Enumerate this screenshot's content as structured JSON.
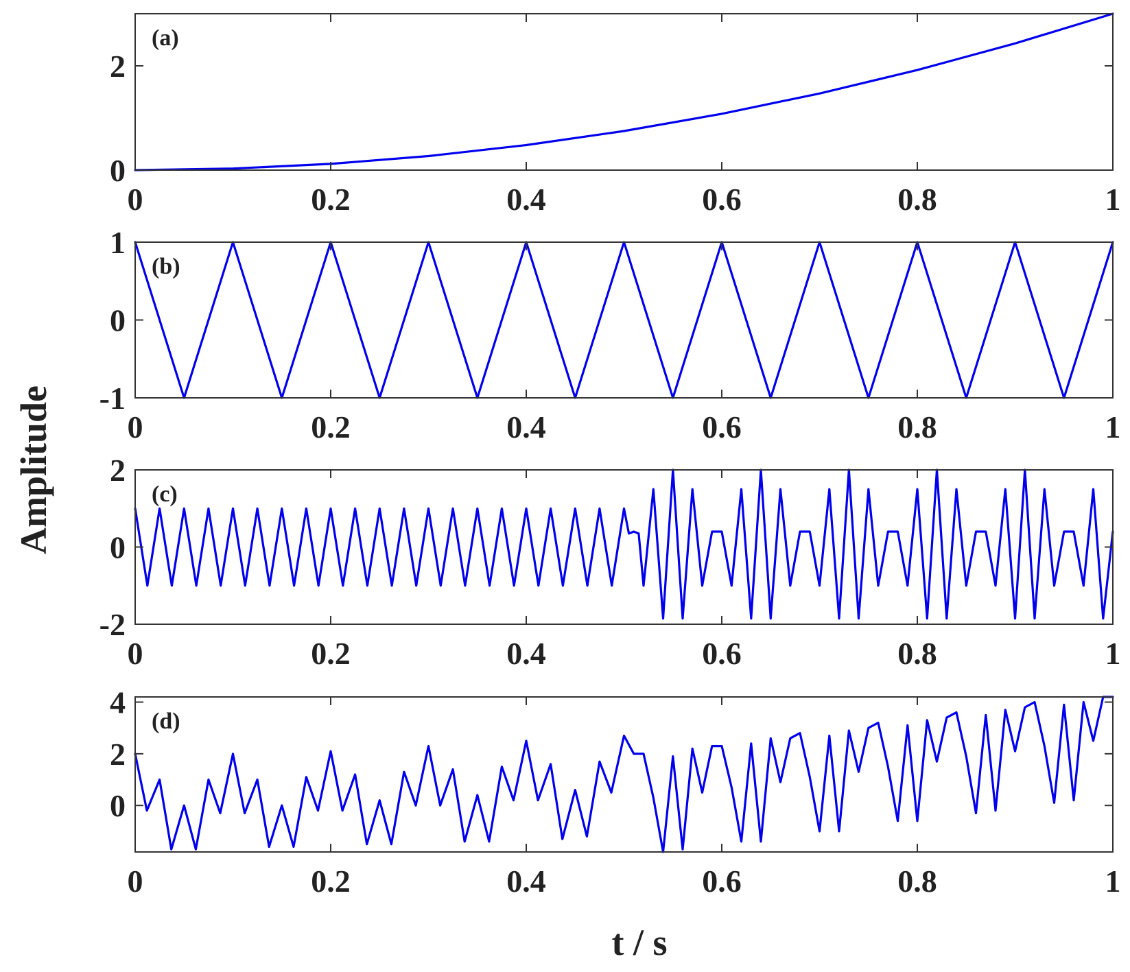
{
  "figure": {
    "ylabel": "Amplitude",
    "xlabel": "t / s",
    "line_color": "#0000ee"
  },
  "chart_data": [
    {
      "type": "line",
      "panel_label": "(a)",
      "xlim": [
        0,
        1
      ],
      "ylim": [
        0,
        3
      ],
      "xticks": [
        0,
        0.2,
        0.4,
        0.6,
        0.8,
        1
      ],
      "xtick_labels": [
        "0",
        "0.2",
        "0.4",
        "0.6",
        "0.8",
        "1"
      ],
      "yticks": [
        0,
        2
      ],
      "ytick_labels": [
        "0",
        "2"
      ],
      "grid": false,
      "series": [
        {
          "x": [
            0,
            0.1,
            0.2,
            0.3,
            0.4,
            0.5,
            0.6,
            0.7,
            0.8,
            0.9,
            1.0
          ],
          "values": [
            0,
            0.03,
            0.12,
            0.27,
            0.48,
            0.75,
            1.08,
            1.47,
            1.92,
            2.43,
            3.0
          ]
        }
      ]
    },
    {
      "type": "line",
      "panel_label": "(b)",
      "xlim": [
        0,
        1
      ],
      "ylim": [
        -1,
        1
      ],
      "xticks": [
        0,
        0.2,
        0.4,
        0.6,
        0.8,
        1
      ],
      "xtick_labels": [
        "0",
        "0.2",
        "0.4",
        "0.6",
        "0.8",
        "1"
      ],
      "yticks": [
        -1,
        0,
        1
      ],
      "ytick_labels": [
        "-1",
        "0",
        "1"
      ],
      "grid": false,
      "series": [
        {
          "x": [
            0,
            0.05,
            0.1,
            0.15,
            0.2,
            0.25,
            0.3,
            0.35,
            0.4,
            0.45,
            0.5,
            0.55,
            0.6,
            0.65,
            0.7,
            0.75,
            0.8,
            0.85,
            0.9,
            0.95,
            1.0
          ],
          "values": [
            1,
            -1,
            1,
            -1,
            1,
            -1,
            1,
            -1,
            1,
            -1,
            1,
            -1,
            1,
            -1,
            1,
            -1,
            1,
            -1,
            1,
            -1,
            1
          ]
        }
      ]
    },
    {
      "type": "line",
      "panel_label": "(c)",
      "xlim": [
        0,
        1
      ],
      "ylim": [
        -2,
        2
      ],
      "xticks": [
        0,
        0.2,
        0.4,
        0.6,
        0.8,
        1
      ],
      "xtick_labels": [
        "0",
        "0.2",
        "0.4",
        "0.6",
        "0.8",
        "1"
      ],
      "yticks": [
        -2,
        0,
        2
      ],
      "ytick_labels": [
        "-2",
        "0",
        "2"
      ],
      "grid": false,
      "series": [
        {
          "x": [
            0,
            0.0125,
            0.025,
            0.0375,
            0.05,
            0.0625,
            0.075,
            0.0875,
            0.1,
            0.1125,
            0.125,
            0.1375,
            0.15,
            0.1625,
            0.175,
            0.1875,
            0.2,
            0.2125,
            0.225,
            0.2375,
            0.25,
            0.2625,
            0.275,
            0.2875,
            0.3,
            0.3125,
            0.325,
            0.3375,
            0.35,
            0.3625,
            0.375,
            0.3875,
            0.4,
            0.4125,
            0.425,
            0.4375,
            0.45,
            0.4625,
            0.475,
            0.4875,
            0.5,
            0.505,
            0.51,
            0.515,
            0.52,
            0.53,
            0.54,
            0.55,
            0.56,
            0.57,
            0.58,
            0.59,
            0.6,
            0.61,
            0.62,
            0.63,
            0.64,
            0.65,
            0.66,
            0.67,
            0.68,
            0.69,
            0.7,
            0.71,
            0.72,
            0.73,
            0.74,
            0.75,
            0.76,
            0.77,
            0.78,
            0.79,
            0.8,
            0.81,
            0.82,
            0.83,
            0.84,
            0.85,
            0.86,
            0.87,
            0.88,
            0.89,
            0.9,
            0.91,
            0.92,
            0.93,
            0.94,
            0.95,
            0.96,
            0.97,
            0.98,
            0.99,
            1.0
          ],
          "values": [
            1,
            -1,
            1,
            -1,
            1,
            -1,
            1,
            -1,
            1,
            -1,
            1,
            -1,
            1,
            -1,
            1,
            -1,
            1,
            -1,
            1,
            -1,
            1,
            -1,
            1,
            -1,
            1,
            -1,
            1,
            -1,
            1,
            -1,
            1,
            -1,
            1,
            -1,
            1,
            -1,
            1,
            -1,
            1,
            -1,
            1,
            0.35,
            0.4,
            0.35,
            -1.0,
            1.5,
            -1.85,
            2.0,
            -1.85,
            1.5,
            -1.0,
            0.4,
            0.4,
            -1.0,
            1.5,
            -1.85,
            2.0,
            -1.85,
            1.5,
            -1.0,
            0.4,
            0.4,
            -1.0,
            1.5,
            -1.85,
            2.0,
            -1.85,
            1.5,
            -1.0,
            0.4,
            0.4,
            -1.0,
            1.5,
            -1.85,
            2.0,
            -1.85,
            1.5,
            -1.0,
            0.4,
            0.4,
            -1.0,
            1.5,
            -1.85,
            2.0,
            -1.85,
            1.5,
            -1.0,
            0.4,
            0.4,
            -1.0,
            1.5,
            -1.85,
            0.4
          ]
        }
      ]
    },
    {
      "type": "line",
      "panel_label": "(d)",
      "xlim": [
        0,
        1
      ],
      "ylim": [
        -1.8,
        4.2
      ],
      "xticks": [
        0,
        0.2,
        0.4,
        0.6,
        0.8,
        1
      ],
      "xtick_labels": [
        "0",
        "0.2",
        "0.4",
        "0.6",
        "0.8",
        "1"
      ],
      "yticks": [
        0,
        2,
        4
      ],
      "ytick_labels": [
        "0",
        "2",
        "4"
      ],
      "grid": false,
      "series": [
        {
          "x": [
            0,
            0.012,
            0.025,
            0.037,
            0.05,
            0.062,
            0.075,
            0.087,
            0.1,
            0.112,
            0.125,
            0.137,
            0.15,
            0.162,
            0.175,
            0.187,
            0.2,
            0.212,
            0.225,
            0.237,
            0.25,
            0.262,
            0.275,
            0.287,
            0.3,
            0.312,
            0.325,
            0.337,
            0.35,
            0.362,
            0.375,
            0.387,
            0.4,
            0.412,
            0.425,
            0.437,
            0.45,
            0.462,
            0.475,
            0.487,
            0.5,
            0.51,
            0.52,
            0.53,
            0.54,
            0.55,
            0.56,
            0.57,
            0.58,
            0.59,
            0.6,
            0.61,
            0.62,
            0.63,
            0.64,
            0.65,
            0.66,
            0.67,
            0.68,
            0.69,
            0.7,
            0.71,
            0.72,
            0.73,
            0.74,
            0.75,
            0.76,
            0.77,
            0.78,
            0.79,
            0.8,
            0.81,
            0.82,
            0.83,
            0.84,
            0.85,
            0.86,
            0.87,
            0.88,
            0.89,
            0.9,
            0.91,
            0.92,
            0.93,
            0.94,
            0.95,
            0.96,
            0.97,
            0.98,
            0.99,
            1.0
          ],
          "values": [
            2.0,
            -0.2,
            1.0,
            -1.7,
            0.0,
            -1.7,
            1.0,
            -0.3,
            2.0,
            -0.3,
            1.0,
            -1.6,
            0.0,
            -1.6,
            1.1,
            -0.2,
            2.1,
            -0.2,
            1.2,
            -1.5,
            0.2,
            -1.5,
            1.3,
            0.0,
            2.3,
            0.0,
            1.4,
            -1.4,
            0.4,
            -1.4,
            1.5,
            0.2,
            2.5,
            0.2,
            1.6,
            -1.3,
            0.6,
            -1.2,
            1.7,
            0.5,
            2.7,
            2.0,
            2.0,
            0.3,
            -1.8,
            1.9,
            -1.7,
            2.2,
            0.5,
            2.3,
            2.3,
            0.7,
            -1.4,
            2.4,
            -1.4,
            2.6,
            0.9,
            2.6,
            2.8,
            1.1,
            -1.0,
            2.7,
            -1.0,
            2.9,
            1.3,
            3.0,
            3.2,
            1.5,
            -0.6,
            3.1,
            -0.6,
            3.3,
            1.7,
            3.4,
            3.6,
            1.9,
            -0.3,
            3.5,
            -0.2,
            3.7,
            2.1,
            3.8,
            4.0,
            2.3,
            0.1,
            3.9,
            0.2,
            4.0,
            2.5,
            4.2,
            4.2
          ]
        }
      ]
    }
  ]
}
